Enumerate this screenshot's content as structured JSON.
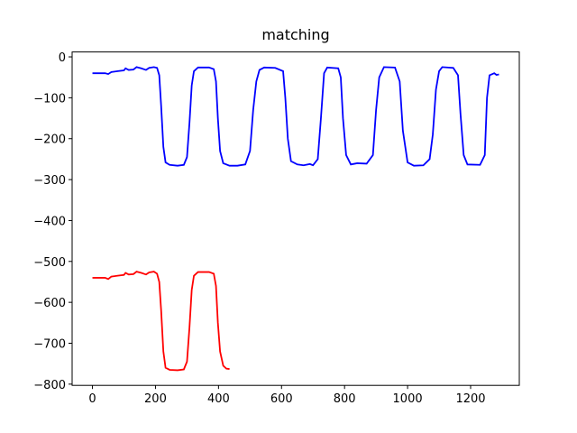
{
  "chart_data": {
    "type": "line",
    "title": "matching",
    "xlim": [
      -64.5,
      1354.5
    ],
    "ylim": [
      -803,
      12
    ],
    "xticks": [
      0,
      200,
      400,
      600,
      800,
      1000,
      1200
    ],
    "yticks": [
      0,
      {
        "value": -100,
        "label": "−100"
      },
      {
        "value": -200,
        "label": "−200"
      },
      {
        "value": -300,
        "label": "−300"
      },
      {
        "value": -400,
        "label": "−400"
      },
      {
        "value": -500,
        "label": "−500"
      },
      {
        "value": -600,
        "label": "−600"
      },
      {
        "value": -700,
        "label": "−700"
      },
      {
        "value": -800,
        "label": "−800"
      }
    ],
    "series": [
      {
        "color": "#0000ff",
        "x": [
          0,
          40,
          50,
          60,
          80,
          100,
          105,
          115,
          130,
          140,
          155,
          170,
          180,
          195,
          205,
          212,
          218,
          225,
          232,
          245,
          270,
          290,
          300,
          308,
          315,
          322,
          335,
          370,
          385,
          392,
          398,
          405,
          415,
          435,
          460,
          485,
          500,
          510,
          520,
          530,
          545,
          580,
          605,
          612,
          620,
          630,
          650,
          670,
          690,
          700,
          715,
          725,
          735,
          745,
          780,
          788,
          795,
          805,
          820,
          840,
          870,
          890,
          900,
          910,
          925,
          960,
          975,
          985,
          1000,
          1020,
          1050,
          1070,
          1080,
          1090,
          1100,
          1110,
          1145,
          1160,
          1168,
          1178,
          1190,
          1230,
          1245,
          1252,
          1260,
          1275,
          1282,
          1290
        ],
        "values": [
          -40,
          -40,
          -42,
          -37,
          -35,
          -33,
          -28,
          -32,
          -31,
          -25,
          -28,
          -32,
          -27,
          -25,
          -27,
          -45,
          -120,
          -220,
          -258,
          -264,
          -266,
          -264,
          -245,
          -160,
          -70,
          -35,
          -26,
          -26,
          -30,
          -60,
          -150,
          -230,
          -260,
          -266,
          -266,
          -263,
          -230,
          -130,
          -60,
          -32,
          -26,
          -27,
          -35,
          -100,
          -200,
          -255,
          -263,
          -265,
          -262,
          -265,
          -250,
          -150,
          -40,
          -26,
          -28,
          -50,
          -150,
          -240,
          -263,
          -260,
          -261,
          -240,
          -130,
          -50,
          -25,
          -26,
          -60,
          -180,
          -258,
          -266,
          -265,
          -250,
          -190,
          -80,
          -35,
          -25,
          -27,
          -45,
          -140,
          -240,
          -263,
          -264,
          -240,
          -100,
          -45,
          -40,
          -44,
          -43
        ]
      },
      {
        "color": "#ff0000",
        "x": [
          0,
          40,
          50,
          60,
          80,
          100,
          105,
          115,
          130,
          140,
          155,
          170,
          180,
          195,
          205,
          212,
          218,
          225,
          232,
          245,
          270,
          290,
          300,
          308,
          315,
          322,
          335,
          370,
          385,
          392,
          398,
          405,
          415,
          425,
          435
        ],
        "values": [
          -540,
          -540,
          -543,
          -537,
          -535,
          -533,
          -528,
          -532,
          -531,
          -525,
          -528,
          -532,
          -527,
          -525,
          -530,
          -550,
          -620,
          -720,
          -760,
          -765,
          -766,
          -764,
          -745,
          -660,
          -570,
          -535,
          -526,
          -526,
          -530,
          -560,
          -650,
          -720,
          -755,
          -762,
          -763
        ]
      }
    ]
  }
}
